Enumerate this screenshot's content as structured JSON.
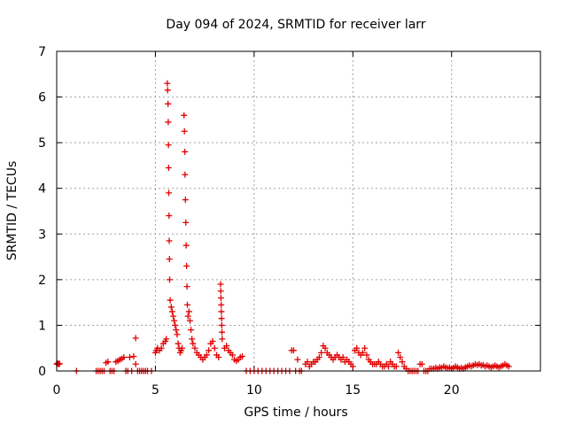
{
  "chart_data": {
    "type": "scatter",
    "title": "Day 094 of 2024, SRMTID for receiver larr",
    "xlabel": "GPS time / hours",
    "ylabel": "SRMTID / TECUs",
    "xlim": [
      0,
      24.5
    ],
    "ylim": [
      0,
      7
    ],
    "x_ticks": [
      0,
      5,
      10,
      15,
      20
    ],
    "x_tick_labels": [
      "0",
      "5",
      "10",
      "15",
      "20"
    ],
    "y_ticks": [
      0,
      1,
      2,
      3,
      4,
      5,
      6,
      7
    ],
    "y_tick_labels": [
      "0",
      "1",
      "2",
      "3",
      "4",
      "5",
      "6",
      "7"
    ],
    "grid": true,
    "marker": "plus",
    "series": [
      {
        "color": "#e00000",
        "points": [
          [
            0.0,
            0.15
          ],
          [
            0.05,
            0.17
          ],
          [
            0.1,
            0.15
          ],
          [
            0.15,
            0.16
          ],
          [
            1.0,
            0.0
          ],
          [
            2.0,
            0.0
          ],
          [
            2.1,
            0.0
          ],
          [
            2.2,
            0.0
          ],
          [
            2.3,
            0.0
          ],
          [
            2.4,
            0.0
          ],
          [
            2.5,
            0.18
          ],
          [
            2.6,
            0.2
          ],
          [
            2.7,
            0.0
          ],
          [
            2.8,
            0.0
          ],
          [
            2.9,
            0.0
          ],
          [
            3.0,
            0.2
          ],
          [
            3.1,
            0.22
          ],
          [
            3.2,
            0.25
          ],
          [
            3.3,
            0.27
          ],
          [
            3.4,
            0.3
          ],
          [
            3.5,
            0.0
          ],
          [
            3.6,
            0.0
          ],
          [
            3.7,
            0.3
          ],
          [
            3.8,
            0.0
          ],
          [
            3.9,
            0.32
          ],
          [
            4.0,
            0.72
          ],
          [
            4.0,
            0.15
          ],
          [
            4.1,
            0.0
          ],
          [
            4.2,
            0.0
          ],
          [
            4.3,
            0.0
          ],
          [
            4.4,
            0.0
          ],
          [
            4.5,
            0.0
          ],
          [
            4.6,
            0.0
          ],
          [
            4.8,
            0.0
          ],
          [
            5.0,
            0.4
          ],
          [
            5.05,
            0.45
          ],
          [
            5.1,
            0.5
          ],
          [
            5.2,
            0.45
          ],
          [
            5.3,
            0.5
          ],
          [
            5.4,
            0.6
          ],
          [
            5.5,
            0.65
          ],
          [
            5.55,
            0.7
          ],
          [
            5.6,
            6.3
          ],
          [
            5.62,
            6.15
          ],
          [
            5.64,
            5.85
          ],
          [
            5.65,
            5.45
          ],
          [
            5.66,
            4.95
          ],
          [
            5.67,
            4.45
          ],
          [
            5.68,
            3.9
          ],
          [
            5.69,
            3.4
          ],
          [
            5.7,
            2.85
          ],
          [
            5.71,
            2.45
          ],
          [
            5.72,
            2.0
          ],
          [
            5.75,
            1.55
          ],
          [
            5.8,
            1.4
          ],
          [
            5.85,
            1.3
          ],
          [
            5.9,
            1.2
          ],
          [
            5.95,
            1.1
          ],
          [
            6.0,
            1.0
          ],
          [
            6.05,
            0.9
          ],
          [
            6.1,
            0.8
          ],
          [
            6.15,
            0.6
          ],
          [
            6.2,
            0.5
          ],
          [
            6.25,
            0.4
          ],
          [
            6.3,
            0.45
          ],
          [
            6.35,
            0.5
          ],
          [
            6.45,
            5.6
          ],
          [
            6.47,
            5.25
          ],
          [
            6.49,
            4.8
          ],
          [
            6.5,
            4.3
          ],
          [
            6.52,
            3.75
          ],
          [
            6.54,
            3.25
          ],
          [
            6.56,
            2.75
          ],
          [
            6.58,
            2.3
          ],
          [
            6.6,
            1.85
          ],
          [
            6.62,
            1.45
          ],
          [
            6.65,
            1.2
          ],
          [
            6.7,
            1.3
          ],
          [
            6.75,
            1.1
          ],
          [
            6.8,
            0.9
          ],
          [
            6.85,
            0.7
          ],
          [
            6.9,
            0.6
          ],
          [
            7.0,
            0.5
          ],
          [
            7.1,
            0.4
          ],
          [
            7.2,
            0.35
          ],
          [
            7.3,
            0.3
          ],
          [
            7.4,
            0.25
          ],
          [
            7.5,
            0.3
          ],
          [
            7.6,
            0.35
          ],
          [
            7.7,
            0.45
          ],
          [
            7.8,
            0.6
          ],
          [
            7.9,
            0.65
          ],
          [
            8.0,
            0.5
          ],
          [
            8.1,
            0.35
          ],
          [
            8.2,
            0.3
          ],
          [
            8.3,
            1.9
          ],
          [
            8.31,
            1.75
          ],
          [
            8.32,
            1.6
          ],
          [
            8.33,
            1.45
          ],
          [
            8.34,
            1.3
          ],
          [
            8.35,
            1.15
          ],
          [
            8.36,
            1.0
          ],
          [
            8.37,
            0.85
          ],
          [
            8.38,
            0.7
          ],
          [
            8.5,
            0.5
          ],
          [
            8.6,
            0.55
          ],
          [
            8.7,
            0.45
          ],
          [
            8.8,
            0.4
          ],
          [
            8.9,
            0.35
          ],
          [
            9.0,
            0.25
          ],
          [
            9.1,
            0.22
          ],
          [
            9.2,
            0.25
          ],
          [
            9.3,
            0.3
          ],
          [
            9.4,
            0.32
          ],
          [
            9.6,
            0.0
          ],
          [
            9.8,
            0.0
          ],
          [
            10.0,
            0.0
          ],
          [
            10.2,
            0.0
          ],
          [
            10.4,
            0.0
          ],
          [
            10.6,
            0.0
          ],
          [
            10.8,
            0.0
          ],
          [
            11.0,
            0.0
          ],
          [
            11.2,
            0.0
          ],
          [
            11.4,
            0.0
          ],
          [
            11.6,
            0.0
          ],
          [
            11.8,
            0.0
          ],
          [
            11.9,
            0.45
          ],
          [
            12.0,
            0.45
          ],
          [
            12.1,
            0.0
          ],
          [
            12.2,
            0.25
          ],
          [
            12.3,
            0.0
          ],
          [
            12.4,
            0.0
          ],
          [
            12.6,
            0.15
          ],
          [
            12.7,
            0.2
          ],
          [
            12.8,
            0.1
          ],
          [
            12.9,
            0.15
          ],
          [
            13.0,
            0.2
          ],
          [
            13.1,
            0.2
          ],
          [
            13.2,
            0.25
          ],
          [
            13.3,
            0.3
          ],
          [
            13.4,
            0.4
          ],
          [
            13.5,
            0.55
          ],
          [
            13.6,
            0.5
          ],
          [
            13.7,
            0.4
          ],
          [
            13.8,
            0.35
          ],
          [
            13.9,
            0.3
          ],
          [
            14.0,
            0.25
          ],
          [
            14.1,
            0.3
          ],
          [
            14.2,
            0.35
          ],
          [
            14.3,
            0.3
          ],
          [
            14.4,
            0.25
          ],
          [
            14.5,
            0.3
          ],
          [
            14.6,
            0.2
          ],
          [
            14.7,
            0.25
          ],
          [
            14.8,
            0.2
          ],
          [
            14.9,
            0.15
          ],
          [
            15.0,
            0.1
          ],
          [
            15.1,
            0.45
          ],
          [
            15.2,
            0.5
          ],
          [
            15.3,
            0.4
          ],
          [
            15.4,
            0.35
          ],
          [
            15.5,
            0.4
          ],
          [
            15.6,
            0.5
          ],
          [
            15.7,
            0.35
          ],
          [
            15.8,
            0.25
          ],
          [
            15.9,
            0.2
          ],
          [
            16.0,
            0.15
          ],
          [
            16.1,
            0.15
          ],
          [
            16.2,
            0.15
          ],
          [
            16.3,
            0.2
          ],
          [
            16.4,
            0.15
          ],
          [
            16.5,
            0.1
          ],
          [
            16.6,
            0.1
          ],
          [
            16.7,
            0.15
          ],
          [
            16.8,
            0.1
          ],
          [
            16.9,
            0.2
          ],
          [
            17.0,
            0.15
          ],
          [
            17.1,
            0.1
          ],
          [
            17.2,
            0.1
          ],
          [
            17.3,
            0.4
          ],
          [
            17.4,
            0.3
          ],
          [
            17.5,
            0.2
          ],
          [
            17.6,
            0.1
          ],
          [
            17.7,
            0.05
          ],
          [
            17.8,
            0.0
          ],
          [
            17.9,
            0.0
          ],
          [
            18.0,
            0.0
          ],
          [
            18.1,
            0.0
          ],
          [
            18.2,
            0.0
          ],
          [
            18.3,
            0.0
          ],
          [
            18.4,
            0.15
          ],
          [
            18.5,
            0.15
          ],
          [
            18.6,
            0.0
          ],
          [
            18.7,
            0.0
          ],
          [
            18.8,
            0.0
          ],
          [
            18.9,
            0.05
          ],
          [
            19.0,
            0.05
          ],
          [
            19.1,
            0.05
          ],
          [
            19.2,
            0.07
          ],
          [
            19.3,
            0.05
          ],
          [
            19.4,
            0.08
          ],
          [
            19.5,
            0.07
          ],
          [
            19.6,
            0.1
          ],
          [
            19.7,
            0.08
          ],
          [
            19.8,
            0.06
          ],
          [
            19.9,
            0.08
          ],
          [
            20.0,
            0.05
          ],
          [
            20.1,
            0.07
          ],
          [
            20.2,
            0.1
          ],
          [
            20.3,
            0.08
          ],
          [
            20.4,
            0.05
          ],
          [
            20.5,
            0.07
          ],
          [
            20.6,
            0.05
          ],
          [
            20.7,
            0.08
          ],
          [
            20.8,
            0.1
          ],
          [
            20.9,
            0.12
          ],
          [
            21.0,
            0.1
          ],
          [
            21.1,
            0.12
          ],
          [
            21.2,
            0.15
          ],
          [
            21.3,
            0.13
          ],
          [
            21.4,
            0.15
          ],
          [
            21.5,
            0.12
          ],
          [
            21.6,
            0.13
          ],
          [
            21.7,
            0.1
          ],
          [
            21.8,
            0.12
          ],
          [
            21.9,
            0.1
          ],
          [
            22.0,
            0.08
          ],
          [
            22.1,
            0.1
          ],
          [
            22.2,
            0.12
          ],
          [
            22.3,
            0.1
          ],
          [
            22.4,
            0.08
          ],
          [
            22.5,
            0.1
          ],
          [
            22.6,
            0.12
          ],
          [
            22.7,
            0.15
          ],
          [
            22.8,
            0.12
          ],
          [
            22.9,
            0.1
          ]
        ]
      }
    ]
  }
}
